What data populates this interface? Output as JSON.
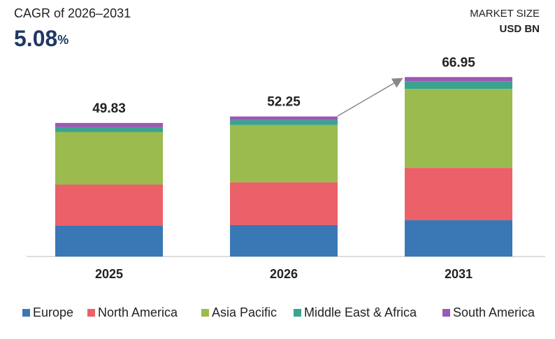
{
  "chart_data": {
    "type": "stacked-bar",
    "subtitle": "CAGR of 2026–2031",
    "cagr": "5.08",
    "cagr_unit": "%",
    "unit_title": "MARKET SIZE",
    "unit": "USD BN",
    "categories": [
      "2025",
      "2026",
      "2031"
    ],
    "totals": [
      49.83,
      52.25,
      66.95
    ],
    "series": [
      {
        "name": "Europe",
        "color": "#3a78b5",
        "values": [
          11.48,
          11.75,
          13.55
        ]
      },
      {
        "name": "North America",
        "color": "#ec6069",
        "values": [
          15.39,
          15.92,
          19.54
        ]
      },
      {
        "name": "Asia Pacific",
        "color": "#9bbb4f",
        "values": [
          19.57,
          21.4,
          29.44
        ]
      },
      {
        "name": "Middle East & Africa",
        "color": "#3aa38f",
        "values": [
          1.83,
          1.83,
          2.87
        ]
      },
      {
        "name": "South America",
        "color": "#9b59b6",
        "values": [
          1.56,
          1.35,
          1.55
        ]
      }
    ]
  }
}
